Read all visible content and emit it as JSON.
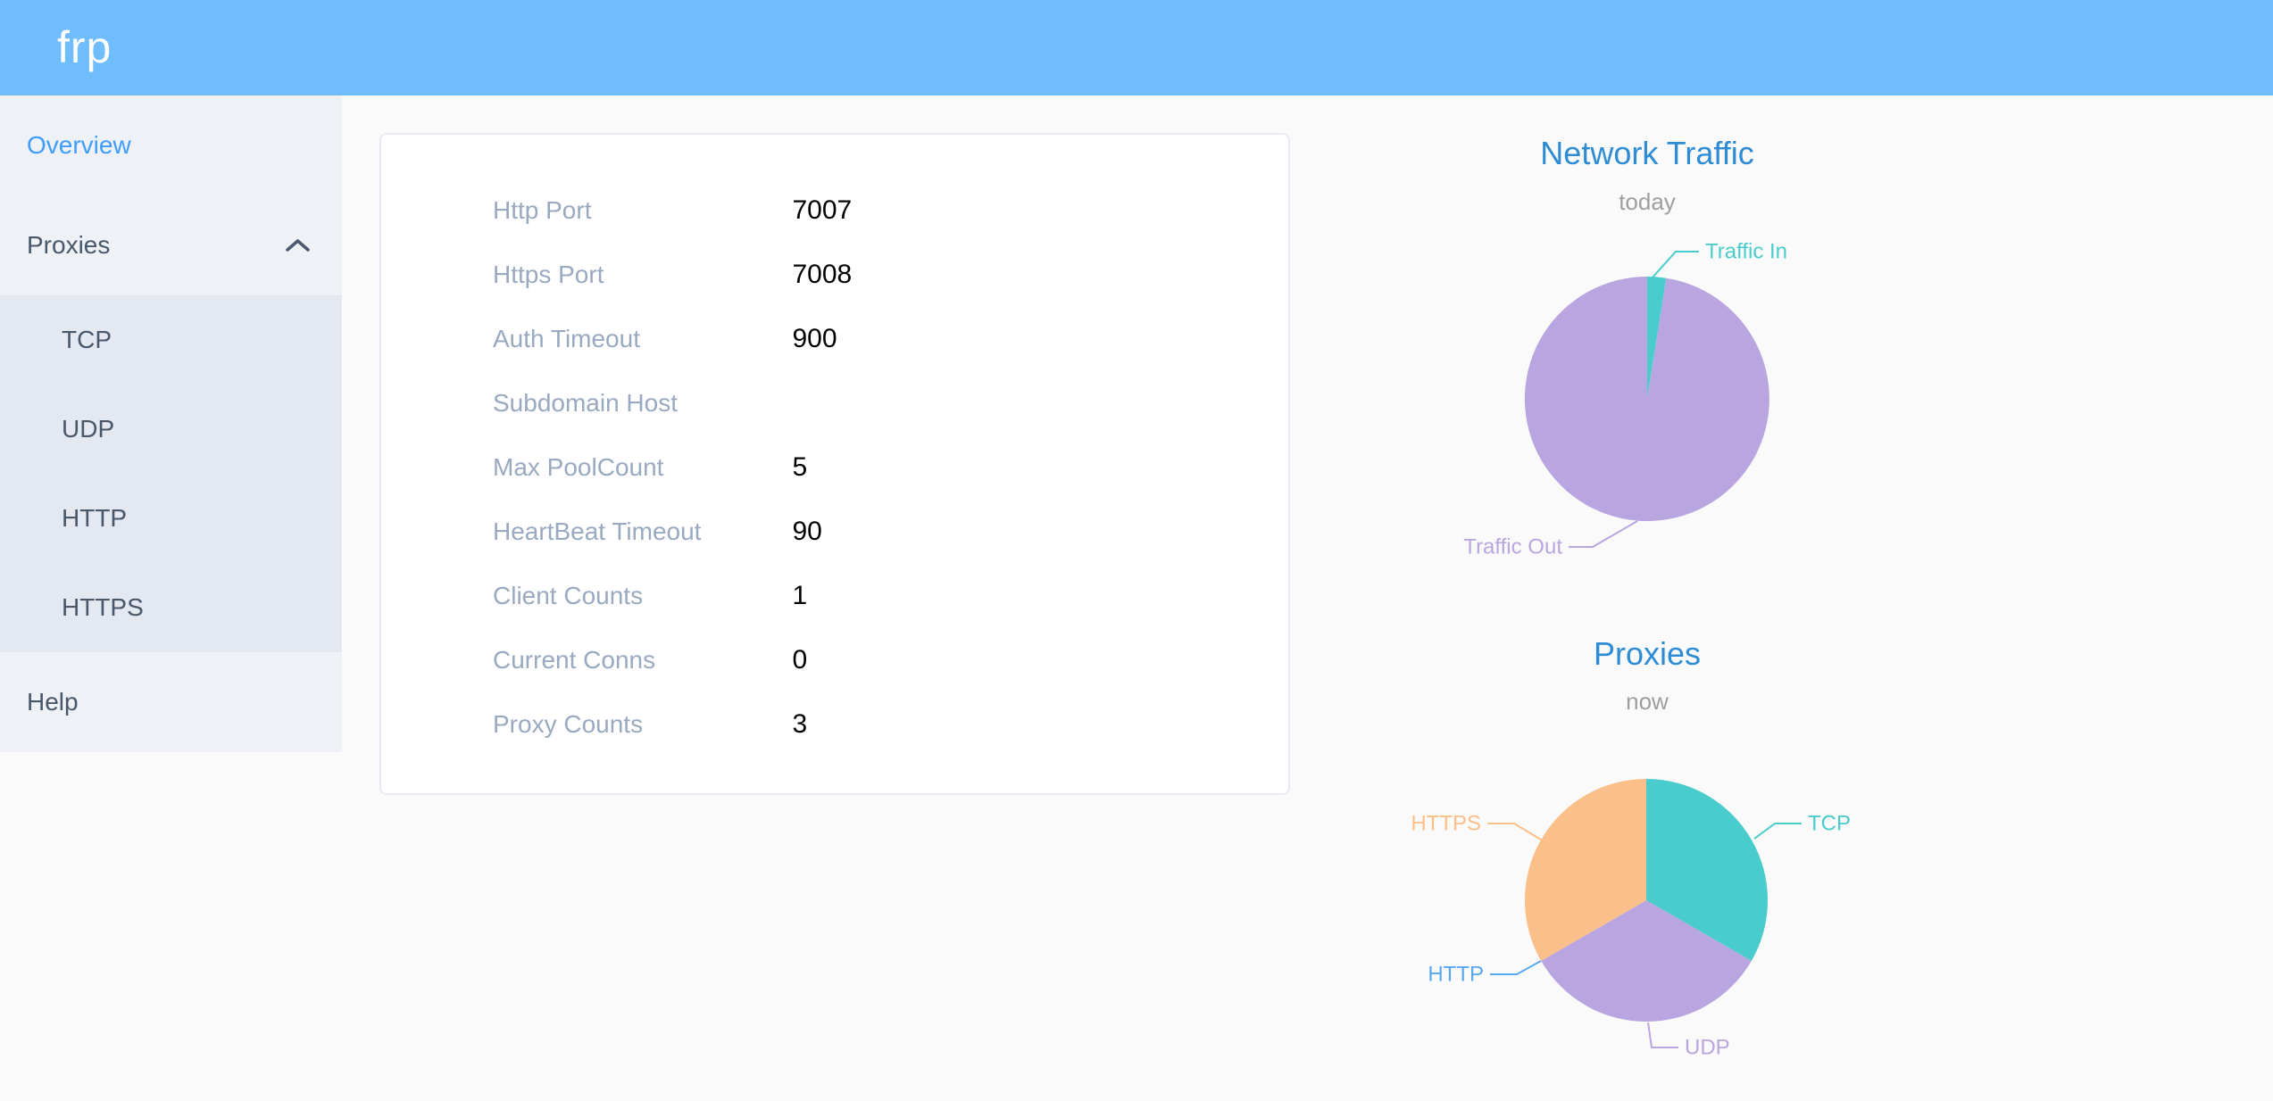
{
  "header": {
    "logo": "frp"
  },
  "sidebar": {
    "items": [
      {
        "label": "Overview",
        "active": true
      },
      {
        "label": "Proxies",
        "expanded": true,
        "children": [
          "TCP",
          "UDP",
          "HTTP",
          "HTTPS"
        ]
      },
      {
        "label": "Help",
        "active": false
      }
    ]
  },
  "server_info": {
    "rows": [
      {
        "label": "Http Port",
        "value": "7007"
      },
      {
        "label": "Https Port",
        "value": "7008"
      },
      {
        "label": "Auth Timeout",
        "value": "900"
      },
      {
        "label": "Subdomain Host",
        "value": ""
      },
      {
        "label": "Max PoolCount",
        "value": "5"
      },
      {
        "label": "HeartBeat Timeout",
        "value": "90"
      },
      {
        "label": "Client Counts",
        "value": "1"
      },
      {
        "label": "Current Conns",
        "value": "0"
      },
      {
        "label": "Proxy Counts",
        "value": "3"
      }
    ]
  },
  "chart_data": [
    {
      "type": "pie",
      "title": "Network Traffic",
      "subtitle": "today",
      "legend_position": "none",
      "values_note": "percent of pie, estimated from slice angles (no numeric labels shown)",
      "series": [
        {
          "name": "Traffic In",
          "value": 2.5,
          "color": "#4acccd"
        },
        {
          "name": "Traffic Out",
          "value": 97.5,
          "color": "#b9a6e0"
        }
      ]
    },
    {
      "type": "pie",
      "title": "Proxies",
      "subtitle": "now",
      "legend_position": "none",
      "values_note": "proxy counts per type; HTTP slice is zero-width but labeled",
      "series": [
        {
          "name": "TCP",
          "value": 1,
          "color": "#4acccd"
        },
        {
          "name": "UDP",
          "value": 1,
          "color": "#b9a6e0"
        },
        {
          "name": "HTTP",
          "value": 0,
          "color": "#5aa9f0"
        },
        {
          "name": "HTTPS",
          "value": 1,
          "color": "#fbc089"
        }
      ]
    }
  ],
  "colors": {
    "header_bg": "#6fbdfc",
    "active_menu_text": "#3e9dfa",
    "menu_text": "#48576a",
    "sidebar_bg": "#eef1f6",
    "submenu_bg": "#e4e8f1",
    "chart_title": "#2d8cd4",
    "card_label_text": "#99a9bf"
  }
}
